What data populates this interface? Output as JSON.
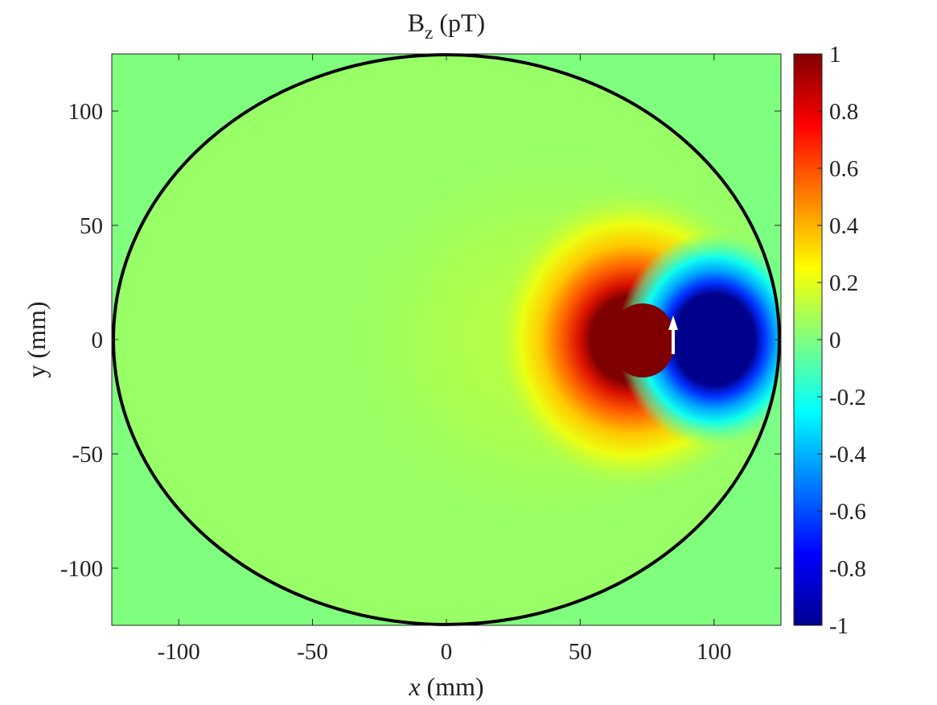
{
  "chart_data": {
    "type": "heatmap",
    "title": {
      "main": "B",
      "sub": "z",
      "rest": " (pT)"
    },
    "xlabel": {
      "var": "x",
      "unit": " (mm)"
    },
    "ylabel": "y (mm)",
    "xlim": [
      -125,
      125
    ],
    "ylim": [
      -125,
      125
    ],
    "xticks": [
      -100,
      -50,
      0,
      50,
      100
    ],
    "yticks": [
      -100,
      -50,
      0,
      50,
      100
    ],
    "xtick_labels": [
      "-100",
      "-50",
      "0",
      "50",
      "100"
    ],
    "ytick_labels": [
      "-100",
      "-50",
      "0",
      "50",
      "100"
    ],
    "colormap": "jet",
    "clim": [
      -1,
      1
    ],
    "colorbar_ticks": [
      1,
      0.8,
      0.6,
      0.4,
      0.2,
      0,
      -0.2,
      -0.4,
      -0.6,
      -0.8,
      -1
    ],
    "colorbar_tick_labels": [
      "1",
      "0.8",
      "0.6",
      "0.4",
      "0.2",
      "0",
      "-0.2",
      "-0.4",
      "-0.6",
      "-0.8",
      "-1"
    ],
    "boundary": {
      "shape": "circle",
      "center": [
        0,
        0
      ],
      "radius_mm": 125
    },
    "dipole": {
      "position_mm": [
        85,
        0
      ],
      "direction": "+y",
      "color": "#ffffff"
    },
    "field_extrema": {
      "max_pT_at_mm": [
        73,
        0
      ],
      "min_pT_at_mm": [
        96,
        0
      ]
    },
    "background_value": 0,
    "grid": false
  }
}
